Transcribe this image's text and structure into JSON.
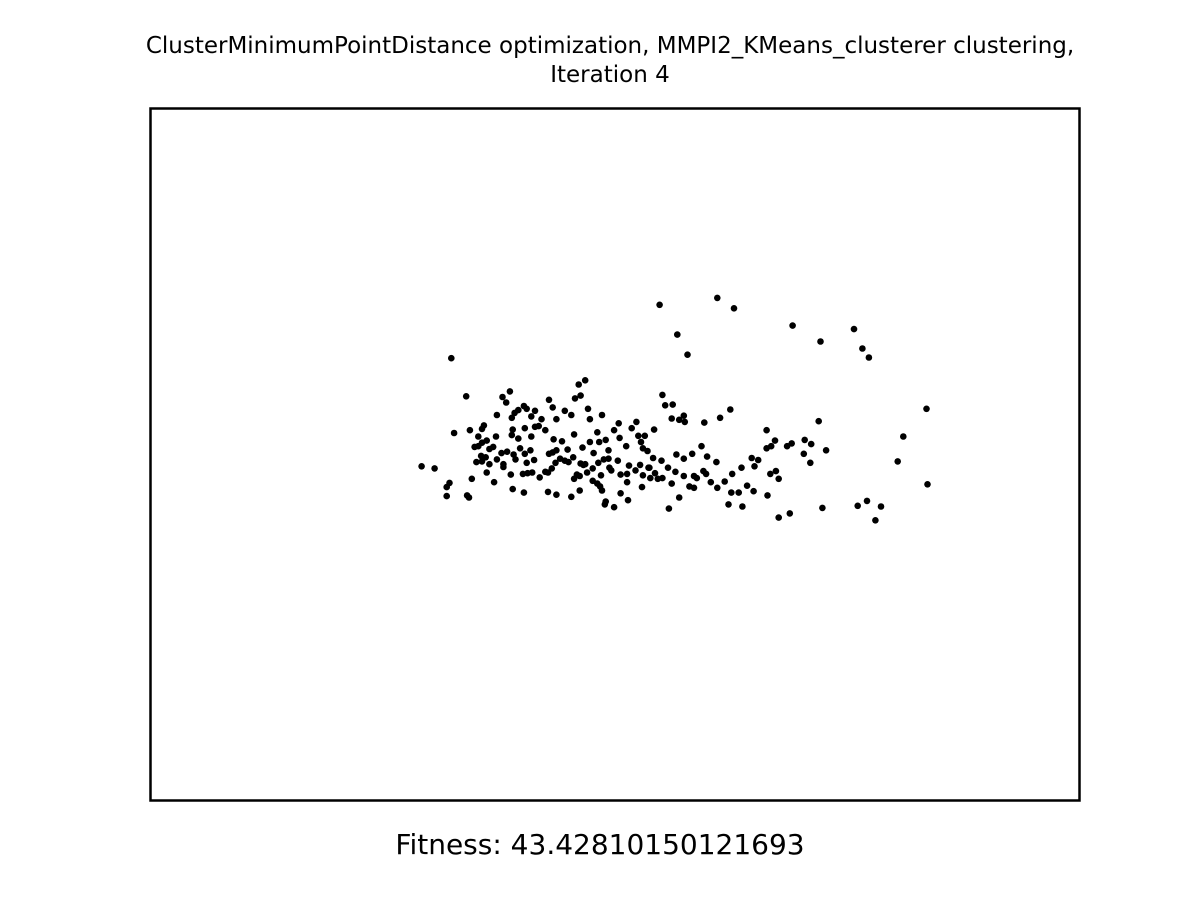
{
  "chart_data": {
    "type": "scatter",
    "title_line1": "ClusterMinimumPointDistance optimization, MMPI2_KMeans_clusterer clustering,",
    "title_line2": "Iteration 4",
    "xlabel": "Fitness: 43.42810150121693",
    "ylabel": "",
    "axes_ticks": "none",
    "grid": false,
    "legend": "none",
    "point_color": "#000000",
    "frame_color": "#000000",
    "xlim": [
      0,
      100
    ],
    "ylim": [
      0,
      100
    ],
    "points": [
      [
        29.2,
        48.3
      ],
      [
        30.6,
        48.0
      ],
      [
        32.2,
        45.9
      ],
      [
        31.9,
        44.0
      ],
      [
        31.9,
        45.3
      ],
      [
        32.4,
        63.9
      ],
      [
        34.0,
        58.4
      ],
      [
        32.7,
        53.1
      ],
      [
        34.4,
        53.5
      ],
      [
        35.3,
        52.6
      ],
      [
        35.3,
        51.2
      ],
      [
        35.7,
        51.7
      ],
      [
        35.7,
        53.7
      ],
      [
        36.2,
        52.0
      ],
      [
        35.9,
        54.2
      ],
      [
        34.9,
        51.1
      ],
      [
        35.6,
        49.8
      ],
      [
        36.2,
        47.4
      ],
      [
        37.0,
        46.0
      ],
      [
        37.3,
        49.3
      ],
      [
        38.0,
        48.2
      ],
      [
        38.9,
        52.8
      ],
      [
        39.0,
        53.6
      ],
      [
        39.8,
        50.9
      ],
      [
        40.3,
        50.1
      ],
      [
        40.6,
        47.3
      ],
      [
        40.5,
        48.8
      ],
      [
        39.1,
        50.0
      ],
      [
        38.4,
        50.4
      ],
      [
        39.6,
        52.3
      ],
      [
        40.9,
        50.6
      ],
      [
        41.3,
        49.2
      ],
      [
        41.8,
        54.1
      ],
      [
        41.4,
        54.0
      ],
      [
        43.7,
        50.6
      ],
      [
        43.3,
        50.3
      ],
      [
        42.9,
        50.1
      ],
      [
        42.8,
        47.4
      ],
      [
        43.6,
        48.8
      ],
      [
        44.3,
        51.9
      ],
      [
        44.6,
        49.1
      ],
      [
        45.5,
        49.6
      ],
      [
        46.6,
        48.5
      ],
      [
        46.8,
        48.6
      ],
      [
        46.3,
        48.7
      ],
      [
        47.6,
        48.0
      ],
      [
        48.2,
        48.8
      ],
      [
        48.8,
        49.3
      ],
      [
        49.3,
        49.4
      ],
      [
        49.6,
        47.7
      ],
      [
        50.6,
        47.1
      ],
      [
        51.3,
        47.2
      ],
      [
        51.5,
        48.4
      ],
      [
        52.2,
        47.7
      ],
      [
        52.7,
        48.5
      ],
      [
        53.6,
        48.1
      ],
      [
        54.3,
        47.3
      ],
      [
        55.1,
        46.6
      ],
      [
        55.7,
        48.1
      ],
      [
        56.5,
        47.5
      ],
      [
        57.4,
        46.9
      ],
      [
        58.5,
        45.2
      ],
      [
        59.8,
        47.2
      ],
      [
        60.3,
        46.0
      ],
      [
        60.9,
        48.9
      ],
      [
        62.5,
        44.5
      ],
      [
        63.7,
        42.5
      ],
      [
        64.2,
        45.5
      ],
      [
        66.4,
        44.1
      ],
      [
        67.6,
        40.9
      ],
      [
        68.8,
        41.5
      ],
      [
        72.3,
        42.3
      ],
      [
        76.1,
        42.6
      ],
      [
        77.1,
        43.3
      ],
      [
        78.0,
        40.5
      ],
      [
        78.6,
        42.5
      ],
      [
        81.0,
        52.6
      ],
      [
        77.3,
        64.0
      ],
      [
        72.1,
        66.3
      ],
      [
        69.1,
        68.6
      ],
      [
        54.8,
        71.6
      ],
      [
        56.7,
        67.3
      ],
      [
        57.8,
        64.4
      ],
      [
        61.0,
        72.6
      ],
      [
        62.8,
        71.1
      ],
      [
        75.7,
        68.1
      ],
      [
        76.6,
        65.3
      ],
      [
        83.5,
        56.6
      ],
      [
        83.6,
        45.7
      ],
      [
        80.4,
        49.0
      ],
      [
        71.9,
        54.8
      ],
      [
        67.2,
        52.0
      ],
      [
        66.8,
        51.2
      ],
      [
        66.3,
        50.9
      ],
      [
        65.4,
        49.2
      ],
      [
        62.4,
        56.5
      ],
      [
        61.3,
        55.3
      ],
      [
        59.6,
        54.6
      ],
      [
        59.3,
        51.2
      ],
      [
        57.5,
        54.7
      ],
      [
        57.4,
        55.6
      ],
      [
        56.9,
        55.0
      ],
      [
        55.4,
        57.1
      ],
      [
        55.1,
        58.6
      ],
      [
        56.2,
        57.2
      ],
      [
        56.1,
        55.2
      ],
      [
        54.2,
        53.6
      ],
      [
        53.2,
        52.7
      ],
      [
        52.3,
        54.7
      ],
      [
        51.8,
        53.8
      ],
      [
        53.0,
        50.9
      ],
      [
        52.5,
        52.7
      ],
      [
        51.2,
        51.2
      ],
      [
        50.5,
        52.4
      ],
      [
        49.0,
        52.1
      ],
      [
        48.1,
        53.2
      ],
      [
        49.9,
        53.5
      ],
      [
        50.4,
        54.5
      ],
      [
        48.6,
        55.7
      ],
      [
        47.3,
        55.1
      ],
      [
        47.1,
        56.6
      ],
      [
        46.8,
        60.7
      ],
      [
        46.3,
        58.5
      ],
      [
        46.1,
        60.1
      ],
      [
        45.7,
        58.1
      ],
      [
        45.3,
        55.7
      ],
      [
        44.6,
        56.3
      ],
      [
        43.7,
        55.1
      ],
      [
        43.3,
        56.8
      ],
      [
        42.9,
        57.9
      ],
      [
        42.5,
        53.5
      ],
      [
        42.1,
        55.1
      ],
      [
        41.4,
        56.3
      ],
      [
        41.0,
        55.5
      ],
      [
        40.5,
        56.6
      ],
      [
        40.2,
        57.0
      ],
      [
        39.2,
        56.0
      ],
      [
        38.9,
        55.3
      ],
      [
        38.3,
        57.5
      ],
      [
        37.9,
        58.3
      ],
      [
        37.3,
        55.7
      ],
      [
        37.2,
        52.6
      ],
      [
        38.7,
        59.1
      ],
      [
        39.6,
        56.4
      ],
      [
        40.3,
        53.8
      ],
      [
        41.0,
        52.6
      ],
      [
        43.4,
        52.2
      ],
      [
        44.9,
        50.7
      ],
      [
        45.6,
        52.9
      ],
      [
        46.5,
        51.0
      ],
      [
        47.7,
        50.2
      ],
      [
        48.3,
        51.8
      ],
      [
        49.3,
        50.6
      ],
      [
        47.3,
        51.8
      ],
      [
        45.9,
        47.1
      ],
      [
        45.6,
        46.5
      ],
      [
        46.2,
        46.9
      ],
      [
        46.2,
        44.8
      ],
      [
        47.6,
        46.2
      ],
      [
        48.4,
        45.4
      ],
      [
        48.9,
        42.8
      ],
      [
        49.0,
        43.2
      ],
      [
        49.9,
        42.4
      ],
      [
        50.6,
        44.4
      ],
      [
        51.4,
        43.4
      ],
      [
        53.0,
        47.0
      ],
      [
        53.7,
        48.1
      ],
      [
        53.8,
        46.6
      ],
      [
        54.6,
        46.5
      ],
      [
        55.8,
        42.2
      ],
      [
        56.9,
        43.8
      ],
      [
        58.0,
        45.4
      ],
      [
        58.5,
        46.9
      ],
      [
        59.5,
        47.6
      ],
      [
        61.0,
        45.2
      ],
      [
        61.8,
        46.1
      ],
      [
        62.6,
        47.2
      ],
      [
        63.6,
        48.1
      ],
      [
        64.7,
        49.5
      ],
      [
        65.0,
        48.3
      ],
      [
        66.7,
        47.2
      ],
      [
        67.6,
        46.5
      ],
      [
        68.5,
        51.2
      ],
      [
        69.0,
        51.6
      ],
      [
        70.4,
        52.1
      ],
      [
        71.1,
        51.5
      ],
      [
        72.7,
        50.6
      ],
      [
        71.0,
        48.8
      ],
      [
        70.3,
        50.1
      ],
      [
        67.3,
        47.6
      ],
      [
        66.3,
        53.5
      ],
      [
        64.9,
        44.7
      ],
      [
        63.3,
        44.5
      ],
      [
        62.2,
        42.8
      ],
      [
        59.9,
        49.7
      ],
      [
        58.8,
        46.6
      ],
      [
        58.3,
        50.1
      ],
      [
        57.4,
        49.4
      ],
      [
        56.6,
        50.0
      ],
      [
        55.0,
        49.1
      ],
      [
        54.1,
        49.5
      ],
      [
        53.5,
        50.5
      ],
      [
        52.8,
        51.8
      ],
      [
        50.3,
        49.1
      ],
      [
        49.4,
        48.1
      ],
      [
        48.5,
        47.0
      ],
      [
        48.1,
        45.8
      ],
      [
        47.0,
        47.4
      ],
      [
        45.0,
        48.9
      ],
      [
        44.1,
        49.4
      ],
      [
        43.2,
        48.0
      ],
      [
        42.5,
        47.5
      ],
      [
        41.9,
        46.7
      ],
      [
        41.1,
        47.4
      ],
      [
        40.1,
        47.2
      ],
      [
        39.3,
        49.3
      ],
      [
        38.8,
        47.1
      ],
      [
        38.0,
        48.6
      ],
      [
        37.8,
        50.2
      ],
      [
        36.9,
        51.1
      ],
      [
        36.5,
        50.8
      ],
      [
        36.1,
        49.6
      ],
      [
        35.7,
        49.0
      ],
      [
        35.1,
        48.9
      ],
      [
        39.0,
        45.0
      ],
      [
        40.2,
        44.5
      ],
      [
        36.5,
        48.6
      ],
      [
        34.6,
        46.5
      ],
      [
        34.3,
        43.8
      ],
      [
        34.1,
        44.1
      ],
      [
        42.8,
        44.6
      ],
      [
        43.7,
        44.2
      ],
      [
        45.3,
        43.9
      ],
      [
        48.6,
        44.8
      ],
      [
        51.3,
        46.0
      ],
      [
        52.9,
        45.3
      ],
      [
        56.1,
        45.8
      ]
    ]
  }
}
